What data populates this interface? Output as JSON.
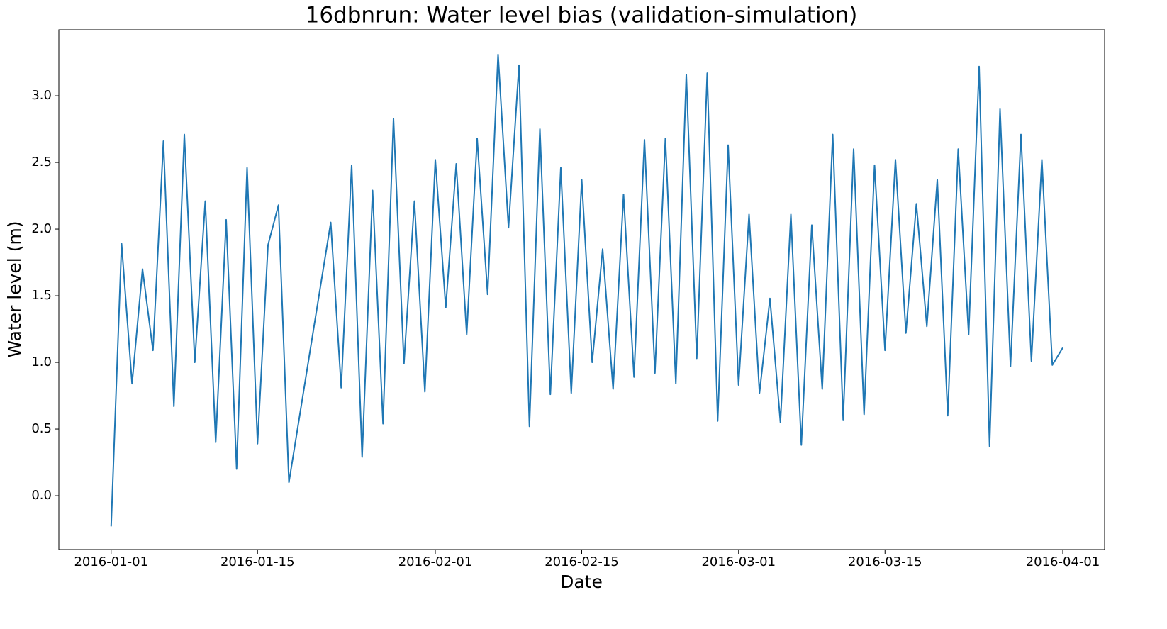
{
  "chart_data": {
    "type": "line",
    "title": "16dbnrun: Water level bias (validation-simulation)",
    "x_label": "Date",
    "y_label": "Water level (m)",
    "x": [
      "2016-01-01",
      "2016-01-02",
      "2016-01-03",
      "2016-01-04",
      "2016-01-05",
      "2016-01-06",
      "2016-01-07",
      "2016-01-08",
      "2016-01-09",
      "2016-01-10",
      "2016-01-11",
      "2016-01-12",
      "2016-01-13",
      "2016-01-14",
      "2016-01-15",
      "2016-01-16",
      "2016-01-17",
      "2016-01-18",
      "2016-01-22",
      "2016-01-23",
      "2016-01-24",
      "2016-01-25",
      "2016-01-26",
      "2016-01-27",
      "2016-01-28",
      "2016-01-29",
      "2016-01-30",
      "2016-01-31",
      "2016-02-01",
      "2016-02-02",
      "2016-02-03",
      "2016-02-04",
      "2016-02-05",
      "2016-02-06",
      "2016-02-07",
      "2016-02-08",
      "2016-02-09",
      "2016-02-10",
      "2016-02-11",
      "2016-02-12",
      "2016-02-13",
      "2016-02-14",
      "2016-02-15",
      "2016-02-16",
      "2016-02-17",
      "2016-02-18",
      "2016-02-19",
      "2016-02-20",
      "2016-02-21",
      "2016-02-22",
      "2016-02-23",
      "2016-02-24",
      "2016-02-25",
      "2016-02-26",
      "2016-02-27",
      "2016-02-28",
      "2016-02-29",
      "2016-03-01",
      "2016-03-02",
      "2016-03-03",
      "2016-03-04",
      "2016-03-05",
      "2016-03-06",
      "2016-03-07",
      "2016-03-08",
      "2016-03-09",
      "2016-03-10",
      "2016-03-11",
      "2016-03-12",
      "2016-03-13",
      "2016-03-14",
      "2016-03-15",
      "2016-03-16",
      "2016-03-17",
      "2016-03-18",
      "2016-03-19",
      "2016-03-20",
      "2016-03-21",
      "2016-03-22",
      "2016-03-23",
      "2016-03-24",
      "2016-03-25",
      "2016-03-26",
      "2016-03-27",
      "2016-03-28",
      "2016-03-29",
      "2016-03-30",
      "2016-03-31",
      "2016-04-01"
    ],
    "series": [
      {
        "name": "Water level bias",
        "color": "#1f77b4",
        "values": [
          -0.23,
          1.89,
          0.84,
          1.7,
          1.09,
          2.66,
          0.67,
          2.71,
          1.0,
          2.21,
          0.4,
          2.07,
          0.2,
          2.46,
          0.39,
          1.88,
          2.18,
          0.1,
          2.05,
          0.81,
          2.48,
          0.29,
          2.29,
          0.54,
          2.83,
          0.99,
          2.21,
          0.78,
          2.52,
          1.41,
          2.49,
          1.21,
          2.68,
          1.51,
          3.31,
          2.01,
          3.23,
          0.52,
          2.75,
          0.76,
          2.46,
          0.77,
          2.37,
          1.0,
          1.85,
          0.8,
          2.26,
          0.89,
          2.67,
          0.92,
          2.68,
          0.84,
          3.16,
          1.03,
          3.17,
          0.56,
          2.63,
          0.83,
          2.11,
          0.77,
          1.48,
          0.55,
          2.11,
          0.38,
          2.03,
          0.8,
          2.71,
          0.57,
          2.6,
          0.61,
          2.48,
          1.09,
          2.52,
          1.22,
          2.19,
          1.27,
          2.37,
          0.6,
          2.6,
          1.21,
          3.22,
          0.37,
          2.9,
          0.97,
          2.71,
          1.01,
          2.52,
          0.98,
          1.11
        ]
      }
    ],
    "xlim": [
      "2015-12-27",
      "2016-04-05"
    ],
    "xticks": [
      "2016-01-01",
      "2016-01-15",
      "2016-02-01",
      "2016-02-15",
      "2016-03-01",
      "2016-03-15",
      "2016-04-01"
    ],
    "ylim": [
      -0.404,
      3.495
    ],
    "yticks": [
      {
        "value": 0,
        "label": "0.0"
      },
      0.5,
      {
        "value": 1,
        "label": "1.0"
      },
      1.5,
      {
        "value": 2,
        "label": "2.0"
      },
      2.5,
      {
        "value": 3,
        "label": "3.0"
      }
    ],
    "grid": false
  }
}
